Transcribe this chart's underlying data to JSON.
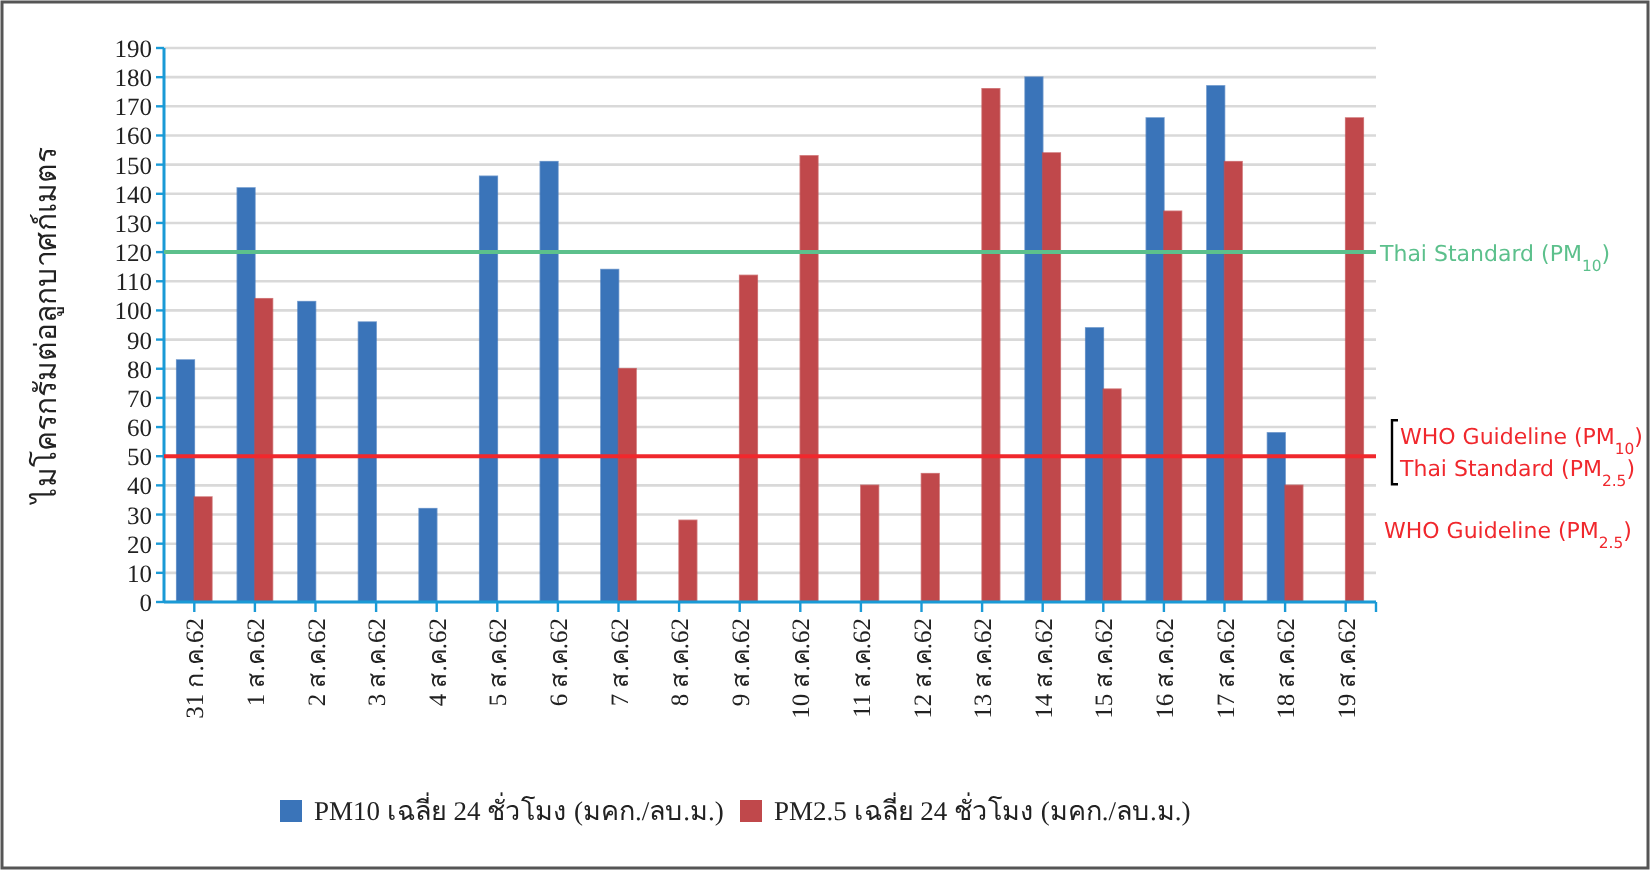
{
  "chart_data": {
    "type": "bar",
    "ylabel": "ไมโครกรัมต่อลูกบาศก์เมตร",
    "categories": [
      "31 ก.ค.62",
      "1 ส.ค.62",
      "2 ส.ค.62",
      "3 ส.ค.62",
      "4 ส.ค.62",
      "5 ส.ค.62",
      "6 ส.ค.62",
      "7 ส.ค.62",
      "8 ส.ค.62",
      "9 ส.ค.62",
      "10 ส.ค.62",
      "11 ส.ค.62",
      "12 ส.ค.62",
      "13 ส.ค.62",
      "14 ส.ค.62",
      "15 ส.ค.62",
      "16 ส.ค.62",
      "17 ส.ค.62",
      "18 ส.ค.62",
      "19 ส.ค.62"
    ],
    "series": [
      {
        "name": "PM10 เฉลี่ย 24 ชั่วโมง (มคก./ลบ.ม.)",
        "color": "#3a74b9",
        "values": [
          83,
          142,
          103,
          96,
          32,
          146,
          151,
          114,
          null,
          null,
          null,
          null,
          null,
          null,
          180,
          94,
          166,
          177,
          58,
          null
        ]
      },
      {
        "name": "PM2.5 เฉลี่ย 24 ชั่วโมง (มคก./ลบ.ม.)",
        "color": "#c0484b",
        "values": [
          36,
          104,
          null,
          null,
          null,
          null,
          null,
          80,
          28,
          112,
          153,
          40,
          44,
          176,
          154,
          73,
          134,
          151,
          40,
          166
        ]
      }
    ],
    "ylim": [
      0,
      190
    ],
    "yticks": [
      0,
      10,
      20,
      30,
      40,
      50,
      60,
      70,
      80,
      90,
      100,
      110,
      120,
      130,
      140,
      150,
      160,
      170,
      180,
      190
    ],
    "grid": "y",
    "legend": "bottom",
    "ref_lines": [
      {
        "axis": "y",
        "value": 120,
        "label": "Thai Standard (PM$_{10}$)",
        "color": "#5cc08c"
      },
      {
        "axis": "y",
        "value": 50,
        "label": "WHO Guideline (PM$_{10}$)",
        "color": "#f0282d"
      }
    ],
    "annotations": [
      "Thai Standard (PM$_{2.5}$)",
      "WHO Guideline (PM$_{2.5}$)"
    ]
  }
}
